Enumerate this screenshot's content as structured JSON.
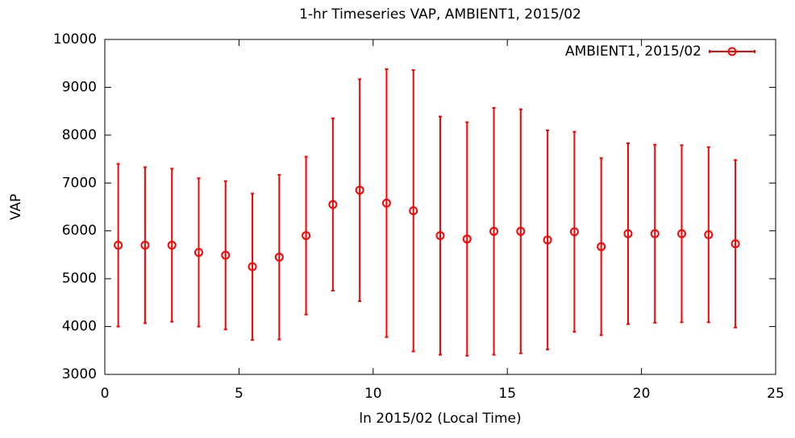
{
  "chart_data": {
    "type": "errorbar",
    "title": "1-hr Timeseries VAP, AMBIENT1, 2015/02",
    "x_label": "ln 2015/02 (Local Time)",
    "y_label": "VAP",
    "x": [
      0.5,
      1.5,
      2.5,
      3.5,
      4.5,
      5.5,
      6.5,
      7.5,
      8.5,
      9.5,
      10.5,
      11.5,
      12.5,
      13.5,
      14.5,
      15.5,
      16.5,
      17.5,
      18.5,
      19.5,
      20.5,
      21.5,
      22.5,
      23.5
    ],
    "series": [
      {
        "name": "AMBIENT1, 2015/02",
        "color": "#ff0000",
        "values": [
          5700,
          5700,
          5700,
          5550,
          5490,
          5250,
          5450,
          5900,
          6550,
          6850,
          6580,
          6420,
          5900,
          5830,
          5990,
          5990,
          5810,
          5980,
          5670,
          5940,
          5940,
          5940,
          5920,
          5730
        ],
        "errors": [
          1700,
          1630,
          1600,
          1550,
          1550,
          1530,
          1720,
          1650,
          1800,
          2320,
          2800,
          2940,
          2490,
          2440,
          2580,
          2550,
          2290,
          2090,
          1850,
          1890,
          1860,
          1850,
          1830,
          1750
        ]
      }
    ],
    "xlim": [
      0,
      25
    ],
    "xticks": [
      0,
      5,
      10,
      15,
      20,
      25
    ],
    "ylim": [
      3000,
      10000
    ],
    "yticks": [
      3000,
      4000,
      5000,
      6000,
      7000,
      8000,
      9000,
      10000
    ],
    "legend": "top-right"
  }
}
